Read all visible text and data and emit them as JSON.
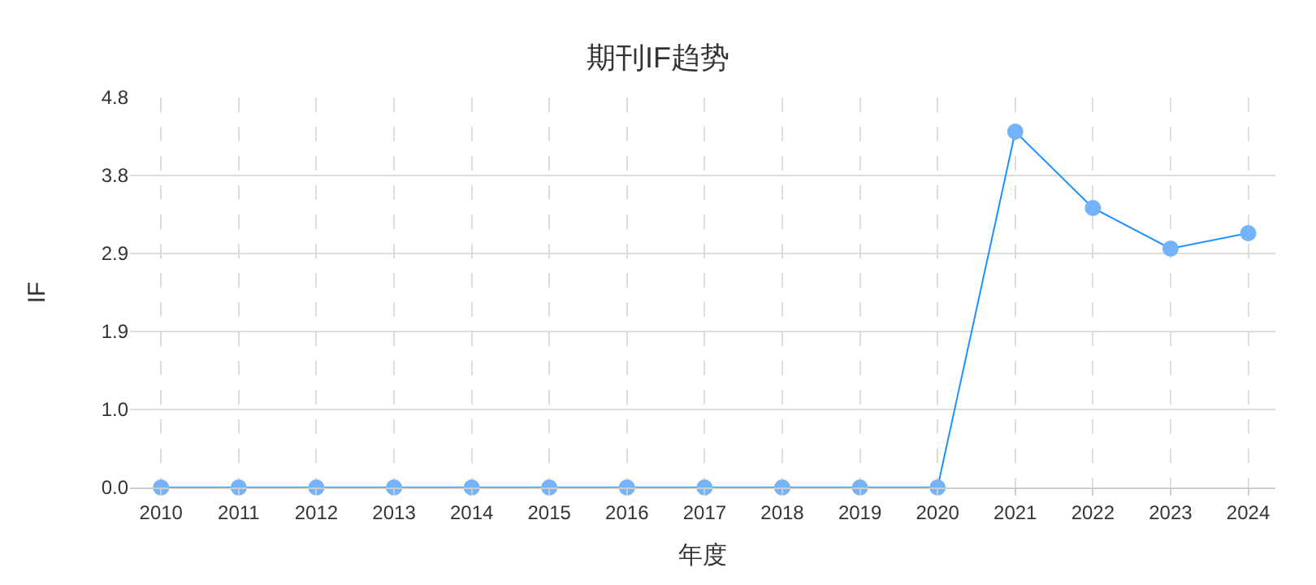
{
  "chart_data": {
    "type": "line",
    "title": "期刊IF趋势",
    "xlabel": "年度",
    "ylabel": "IF",
    "categories": [
      "2010",
      "2011",
      "2012",
      "2013",
      "2014",
      "2015",
      "2016",
      "2017",
      "2018",
      "2019",
      "2020",
      "2021",
      "2022",
      "2023",
      "2024"
    ],
    "series": [
      {
        "color": "#1e90ff",
        "values": [
          0,
          0,
          0,
          0,
          0,
          0,
          0,
          0,
          0,
          0,
          0,
          4.38,
          3.44,
          2.94,
          3.13
        ]
      }
    ],
    "ylim": [
      0,
      4.8
    ],
    "yticks": [
      {
        "value": 0,
        "label": "0.0"
      },
      {
        "value": 0.96,
        "label": "1.0"
      },
      {
        "value": 1.92,
        "label": "1.9"
      },
      {
        "value": 2.88,
        "label": "2.9"
      },
      {
        "value": 3.84,
        "label": "3.8"
      },
      {
        "value": 4.8,
        "label": "4.8"
      }
    ],
    "grid": true,
    "marker": "circle",
    "line_style": "solid",
    "legend": false
  }
}
